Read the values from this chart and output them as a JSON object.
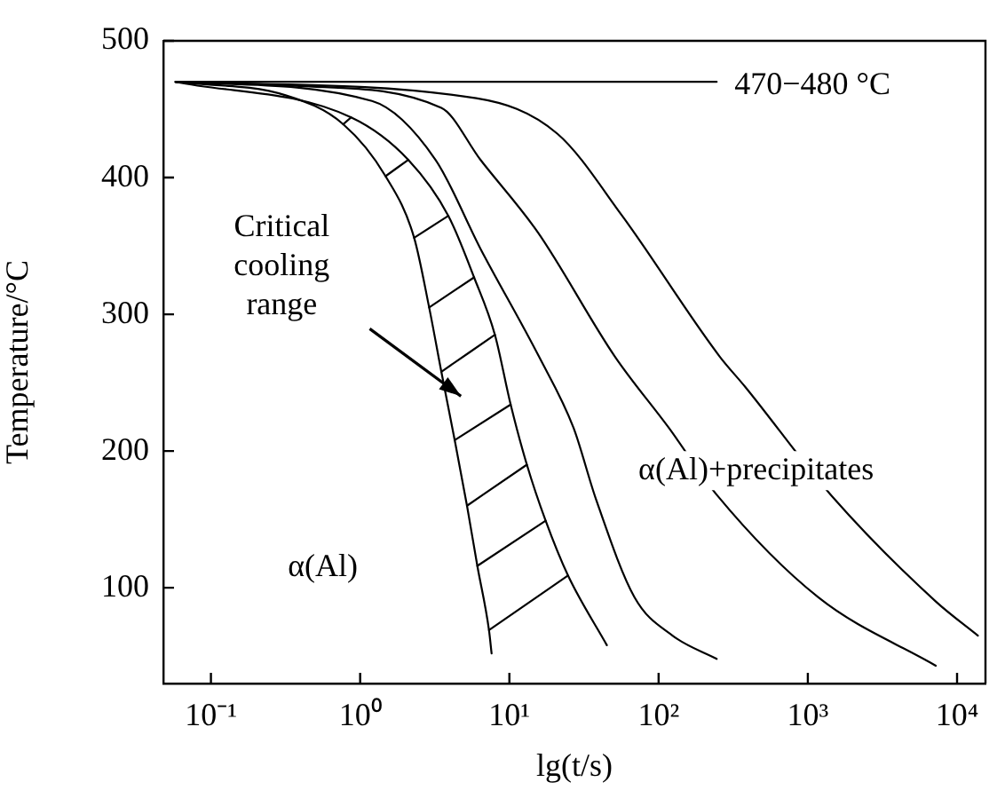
{
  "chart_data": {
    "type": "line",
    "xlabel": "lg(t/s)",
    "ylabel": "Temperature/°C",
    "log": "x",
    "xlim": [
      0.048,
      15500
    ],
    "xticks": [
      {
        "value": 0.1,
        "label": "10⁻¹"
      },
      {
        "value": 1,
        "label": "10⁰"
      },
      {
        "value": 10,
        "label": "10¹"
      },
      {
        "value": 100,
        "label": "10²"
      },
      {
        "value": 1000,
        "label": "10³"
      },
      {
        "value": 10000,
        "label": "10⁴"
      }
    ],
    "ylim": [
      30,
      500
    ],
    "yticks": [
      100,
      200,
      300,
      400,
      500
    ],
    "grid": false,
    "legend": false,
    "marker": "none",
    "line_style": "solid",
    "series": [
      {
        "color": "#000000",
        "x": [
          0.058,
          0.32,
          0.77,
          1.48,
          2.3,
          2.9,
          3.5,
          4.3,
          5.2,
          6.1,
          7.3,
          7.6
        ],
        "values": [
          470,
          460,
          439,
          401,
          356,
          305,
          258,
          208,
          160,
          116,
          69,
          52
        ]
      },
      {
        "color": "#000000",
        "x": [
          0.058,
          0.87,
          2.1,
          3.9,
          5.8,
          8.0,
          10.2,
          13.1,
          17.5,
          24.7,
          45
        ],
        "values": [
          470,
          444,
          413,
          372,
          327,
          285,
          234,
          190,
          149,
          109,
          58
        ]
      },
      {
        "color": "#000000",
        "x": [
          0.058,
          1.2,
          3.2,
          6.4,
          15.8,
          26.9,
          38,
          69,
          124,
          245
        ],
        "values": [
          470,
          456,
          413,
          348,
          269,
          217,
          165,
          93,
          65,
          48
        ]
      },
      {
        "color": "#000000",
        "x": [
          0.058,
          0.39,
          3.5,
          6.4,
          15.5,
          51,
          117,
          245,
          1175,
          7200
        ],
        "values": [
          470,
          467,
          451,
          413,
          360,
          269,
          217,
          168,
          93,
          43
        ]
      },
      {
        "color": "#000000",
        "x": [
          0.058,
          6.0,
          21,
          57,
          257,
          380,
          1450,
          7200,
          13800
        ],
        "values": [
          470,
          458,
          432,
          372,
          269,
          247,
          167,
          90,
          65
        ]
      },
      {
        "color": "#000000",
        "x": [
          0.058,
          245
        ],
        "values": [
          470,
          470
        ]
      },
      {
        "color": "#000000",
        "x": [
          0.77,
          0.87
        ],
        "values": [
          439,
          444
        ]
      },
      {
        "color": "#000000",
        "x": [
          1.48,
          2.1
        ],
        "values": [
          401,
          413
        ]
      },
      {
        "color": "#000000",
        "x": [
          2.3,
          3.9
        ],
        "values": [
          356,
          372
        ]
      },
      {
        "color": "#000000",
        "x": [
          2.9,
          5.8
        ],
        "values": [
          305,
          327
        ]
      },
      {
        "color": "#000000",
        "x": [
          3.5,
          8.0
        ],
        "values": [
          258,
          285
        ]
      },
      {
        "color": "#000000",
        "x": [
          4.3,
          10.2
        ],
        "values": [
          208,
          234
        ]
      },
      {
        "color": "#000000",
        "x": [
          5.2,
          13.1
        ],
        "values": [
          160,
          190
        ]
      },
      {
        "color": "#000000",
        "x": [
          6.1,
          17.5
        ],
        "values": [
          116,
          149
        ]
      },
      {
        "color": "#000000",
        "x": [
          7.3,
          24.7
        ],
        "values": [
          69,
          109
        ]
      }
    ],
    "annotations": [
      {
        "text": "470−480 °C",
        "x": 245,
        "y": 470
      },
      "Critical cooling range",
      "α(Al)+precipitates",
      "α(Al)"
    ]
  }
}
